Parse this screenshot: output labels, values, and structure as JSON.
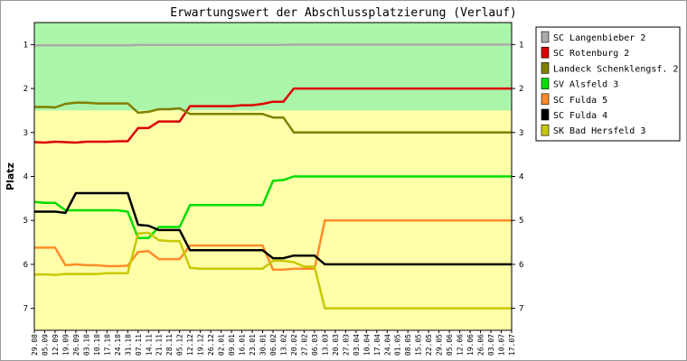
{
  "chart_data": {
    "type": "line",
    "title": "Erwartungswert der Abschlussplatzierung (Verlauf)",
    "ylabel": "Platz",
    "xlabel": "",
    "ylim": [
      0.5,
      7.5
    ],
    "y_inverted": true,
    "y_ticks": [
      1,
      2,
      3,
      4,
      5,
      6,
      7
    ],
    "grid": false,
    "legend_position": "right",
    "background_bands": [
      {
        "from": 0.5,
        "to": 2.5,
        "color": "#aaf5aa"
      },
      {
        "from": 2.5,
        "to": 7.5,
        "color": "#ffffaa"
      }
    ],
    "x": [
      "29.08",
      "05.09",
      "12.09",
      "19.09",
      "26.09",
      "03.10",
      "10.10",
      "17.10",
      "24.10",
      "31.10",
      "07.11",
      "14.11",
      "21.11",
      "28.11",
      "05.12",
      "12.12",
      "19.12",
      "26.12",
      "02.01",
      "09.01",
      "16.01",
      "23.01",
      "30.01",
      "06.02",
      "13.02",
      "20.02",
      "27.02",
      "06.03",
      "13.03",
      "20.03",
      "27.03",
      "03.04",
      "10.04",
      "17.04",
      "24.04",
      "01.05",
      "08.05",
      "15.05",
      "22.05",
      "29.05",
      "05.06",
      "12.06",
      "19.06",
      "26.06",
      "03.07",
      "10.07",
      "17.07"
    ],
    "series": [
      {
        "name": "SC Langenbieber 2",
        "color": "#aaaaaa",
        "values": [
          1.02,
          1.02,
          1.02,
          1.02,
          1.02,
          1.02,
          1.02,
          1.02,
          1.02,
          1.02,
          1.01,
          1.01,
          1.01,
          1.01,
          1.01,
          1.01,
          1.01,
          1.01,
          1.01,
          1.01,
          1.01,
          1.01,
          1.01,
          1.01,
          1.01,
          1.0,
          1.0,
          1.0,
          1.0,
          1.0,
          1.0,
          1.0,
          1.0,
          1.0,
          1.0,
          1.0,
          1.0,
          1.0,
          1.0,
          1.0,
          1.0,
          1.0,
          1.0,
          1.0,
          1.0,
          1.0,
          1.0
        ]
      },
      {
        "name": "SC Rotenburg 2",
        "color": "#dd0000",
        "values": [
          3.22,
          3.23,
          3.21,
          3.22,
          3.23,
          3.21,
          3.21,
          3.21,
          3.2,
          3.2,
          2.9,
          2.9,
          2.75,
          2.75,
          2.75,
          2.4,
          2.4,
          2.4,
          2.4,
          2.4,
          2.38,
          2.38,
          2.35,
          2.3,
          2.3,
          2.0,
          2.0,
          2.0,
          2.0,
          2.0,
          2.0,
          2.0,
          2.0,
          2.0,
          2.0,
          2.0,
          2.0,
          2.0,
          2.0,
          2.0,
          2.0,
          2.0,
          2.0,
          2.0,
          2.0,
          2.0,
          2.0
        ]
      },
      {
        "name": "Landeck Schenklengsf. 2",
        "color": "#808000",
        "values": [
          2.42,
          2.42,
          2.43,
          2.35,
          2.32,
          2.32,
          2.34,
          2.34,
          2.34,
          2.34,
          2.55,
          2.53,
          2.47,
          2.47,
          2.45,
          2.58,
          2.58,
          2.58,
          2.58,
          2.58,
          2.58,
          2.58,
          2.58,
          2.66,
          2.66,
          3.0,
          3.0,
          3.0,
          3.0,
          3.0,
          3.0,
          3.0,
          3.0,
          3.0,
          3.0,
          3.0,
          3.0,
          3.0,
          3.0,
          3.0,
          3.0,
          3.0,
          3.0,
          3.0,
          3.0,
          3.0,
          3.0
        ]
      },
      {
        "name": "SV Alsfeld 3",
        "color": "#00dd00",
        "values": [
          4.58,
          4.6,
          4.6,
          4.77,
          4.77,
          4.77,
          4.77,
          4.77,
          4.77,
          4.8,
          5.4,
          5.4,
          5.15,
          5.15,
          5.15,
          4.65,
          4.65,
          4.65,
          4.65,
          4.65,
          4.65,
          4.65,
          4.65,
          4.1,
          4.08,
          4.0,
          4.0,
          4.0,
          4.0,
          4.0,
          4.0,
          4.0,
          4.0,
          4.0,
          4.0,
          4.0,
          4.0,
          4.0,
          4.0,
          4.0,
          4.0,
          4.0,
          4.0,
          4.0,
          4.0,
          4.0,
          4.0
        ]
      },
      {
        "name": "SC Fulda 5",
        "color": "#ff8c28",
        "values": [
          5.62,
          5.62,
          5.62,
          6.02,
          6.0,
          6.02,
          6.02,
          6.04,
          6.04,
          6.03,
          5.72,
          5.7,
          5.88,
          5.88,
          5.88,
          5.57,
          5.57,
          5.57,
          5.57,
          5.57,
          5.57,
          5.57,
          5.57,
          6.12,
          6.12,
          6.1,
          6.1,
          6.1,
          5.0,
          5.0,
          5.0,
          5.0,
          5.0,
          5.0,
          5.0,
          5.0,
          5.0,
          5.0,
          5.0,
          5.0,
          5.0,
          5.0,
          5.0,
          5.0,
          5.0,
          5.0,
          5.0
        ]
      },
      {
        "name": "SC Fulda 4",
        "color": "#000000",
        "values": [
          4.8,
          4.8,
          4.8,
          4.83,
          4.38,
          4.38,
          4.38,
          4.38,
          4.38,
          4.38,
          5.1,
          5.12,
          5.22,
          5.22,
          5.22,
          5.68,
          5.68,
          5.68,
          5.68,
          5.68,
          5.68,
          5.68,
          5.68,
          5.86,
          5.86,
          5.8,
          5.8,
          5.8,
          6.0,
          6.0,
          6.0,
          6.0,
          6.0,
          6.0,
          6.0,
          6.0,
          6.0,
          6.0,
          6.0,
          6.0,
          6.0,
          6.0,
          6.0,
          6.0,
          6.0,
          6.0,
          6.0
        ]
      },
      {
        "name": "SK Bad Hersfeld 3",
        "color": "#c8c800",
        "values": [
          6.23,
          6.23,
          6.24,
          6.22,
          6.22,
          6.22,
          6.22,
          6.2,
          6.2,
          6.2,
          5.3,
          5.28,
          5.45,
          5.47,
          5.47,
          6.08,
          6.1,
          6.1,
          6.1,
          6.1,
          6.1,
          6.1,
          6.1,
          5.92,
          5.92,
          5.95,
          6.05,
          6.05,
          7.0,
          7.0,
          7.0,
          7.0,
          7.0,
          7.0,
          7.0,
          7.0,
          7.0,
          7.0,
          7.0,
          7.0,
          7.0,
          7.0,
          7.0,
          7.0,
          7.0,
          7.0,
          7.0
        ]
      }
    ]
  }
}
